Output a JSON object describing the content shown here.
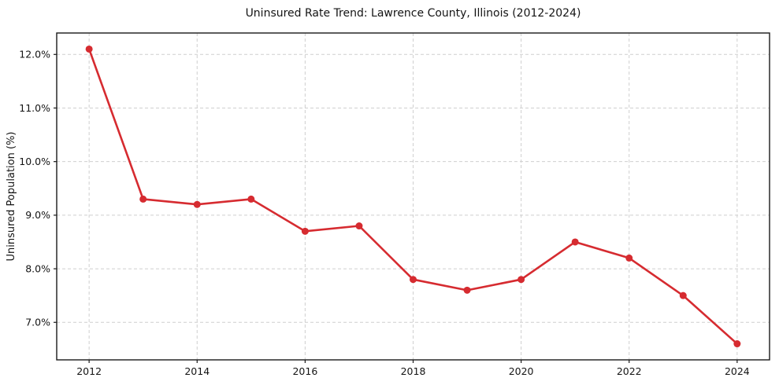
{
  "chart_data": {
    "type": "line",
    "title": "Uninsured Rate Trend: Lawrence County, Illinois (2012-2024)",
    "xlabel": "",
    "ylabel": "Uninsured Population (%)",
    "x": [
      2012,
      2013,
      2014,
      2015,
      2016,
      2017,
      2018,
      2019,
      2020,
      2021,
      2022,
      2023,
      2024
    ],
    "values": [
      12.1,
      9.3,
      9.2,
      9.3,
      8.7,
      8.8,
      7.8,
      7.6,
      7.8,
      8.5,
      8.2,
      7.5,
      6.6
    ],
    "xlim": [
      2011.4,
      2024.6
    ],
    "ylim": [
      6.3,
      12.4
    ],
    "x_ticks": [
      2012,
      2014,
      2016,
      2018,
      2020,
      2022,
      2024
    ],
    "x_tick_labels": [
      "2012",
      "2014",
      "2016",
      "2018",
      "2020",
      "2022",
      "2024"
    ],
    "y_ticks": [
      7,
      8,
      9,
      10,
      11,
      12
    ],
    "y_tick_labels": [
      "7.0%",
      "8.0%",
      "9.0%",
      "10.0%",
      "11.0%",
      "12.0%"
    ],
    "grid": true,
    "legend_position": "none",
    "colors": {
      "line": "#d62b30",
      "marker": "#d62b30",
      "grid": "#cfcfcf",
      "spine": "#1a1a1a",
      "text": "#141414",
      "background": "#ffffff"
    }
  }
}
